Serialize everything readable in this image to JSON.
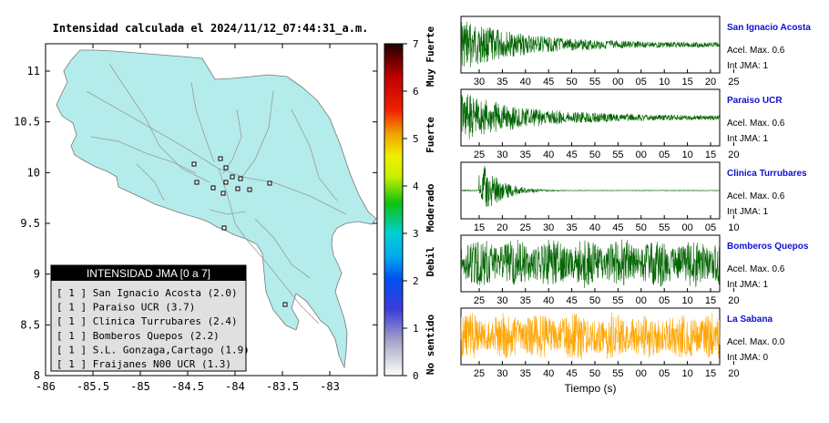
{
  "map": {
    "title": "Intensidad calculada el 2024/11/12_07:44:31_a.m.",
    "x_ticks": [
      "-86",
      "-85.5",
      "-85",
      "-84.5",
      "-84",
      "-83.5",
      "-83"
    ],
    "y_ticks": [
      "11",
      "10.5",
      "10",
      "9.5",
      "9",
      "8.5",
      "8"
    ],
    "land_color": "#b4ecec",
    "legend": {
      "title": "INTENSIDAD JMA [0 a 7]",
      "items": [
        "[ 1 ]  San Ignacio Acosta (2.0)",
        "[ 1 ]  Paraiso UCR (3.7)",
        "[ 1 ]  Clinica Turrubares (2.4)",
        "[ 1 ]  Bomberos Quepos (2.2)",
        "[ 1 ]  S.L. Gonzaga,Cartago (1.9)",
        "[ 1 ]  Fraijanes N00 UCR (1.3)"
      ]
    }
  },
  "colorbar": {
    "ticks": [
      "0",
      "1",
      "2",
      "3",
      "4",
      "5",
      "6",
      "7"
    ],
    "labels": [
      "No sentido",
      "Debil",
      "Moderado",
      "Fuerte",
      "Muy Fuerte"
    ]
  },
  "chart_data": [
    {
      "type": "line",
      "station": "San Ignacio Acosta",
      "x_tick_labels": [
        "30",
        "35",
        "40",
        "45",
        "50",
        "55",
        "00",
        "05",
        "10",
        "15",
        "20",
        "25"
      ],
      "accel_max": "Acel. Max. 0.6",
      "int_jma": "Int JMA: 1",
      "color": "#006400"
    },
    {
      "type": "line",
      "station": "Paraiso UCR",
      "x_tick_labels": [
        "25",
        "30",
        "35",
        "40",
        "45",
        "50",
        "55",
        "00",
        "05",
        "10",
        "15",
        "20"
      ],
      "accel_max": "Acel. Max. 0.6",
      "int_jma": "Int JMA: 1",
      "color": "#006400"
    },
    {
      "type": "line",
      "station": "Clinica Turrubares",
      "x_tick_labels": [
        "15",
        "20",
        "25",
        "30",
        "35",
        "40",
        "45",
        "50",
        "55",
        "00",
        "05",
        "10"
      ],
      "accel_max": "Acel. Max. 0.6",
      "int_jma": "Int JMA: 1",
      "color": "#006400"
    },
    {
      "type": "line",
      "station": "Bomberos Quepos",
      "x_tick_labels": [
        "25",
        "30",
        "35",
        "40",
        "45",
        "50",
        "55",
        "00",
        "05",
        "10",
        "15",
        "20"
      ],
      "accel_max": "Acel. Max. 0.6",
      "int_jma": "Int JMA: 1",
      "color": "#006400"
    },
    {
      "type": "line",
      "station": "La Sabana",
      "x_tick_labels": [
        "25",
        "30",
        "35",
        "40",
        "45",
        "50",
        "55",
        "00",
        "05",
        "10",
        "15",
        "20"
      ],
      "accel_max": "Acel. Max. 0.0",
      "int_jma": "Int JMA: 0",
      "color": "#ffa500",
      "xlabel": "Tiempo (s)"
    }
  ]
}
